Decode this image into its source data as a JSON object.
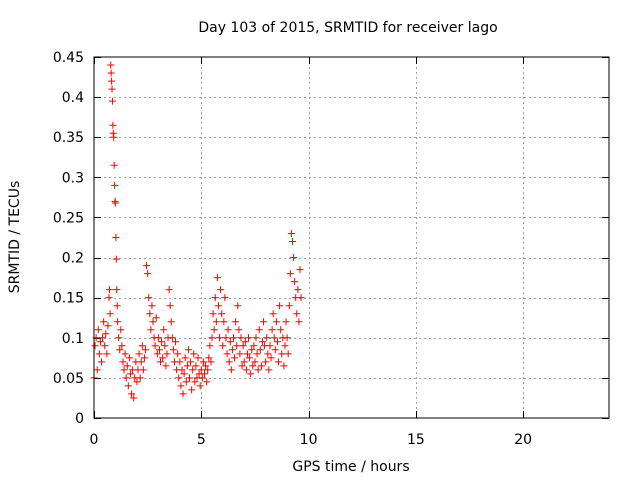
{
  "chart_data": {
    "type": "scatter",
    "title": "Day 103 of 2015, SRMTID for receiver lago",
    "xlabel": "GPS time / hours",
    "ylabel": "SRMTID / TECUs",
    "xlim": [
      0,
      24
    ],
    "ylim": [
      0,
      0.45
    ],
    "x_ticks": [
      0,
      5,
      10,
      15,
      20
    ],
    "x_tick_labels": [
      "0",
      "5",
      "10",
      "15",
      "20"
    ],
    "y_ticks": [
      0,
      0.05,
      0.1,
      0.15,
      0.2,
      0.25,
      0.3,
      0.35,
      0.4,
      0.45
    ],
    "y_tick_labels": [
      "0",
      "0.05",
      "0.1",
      "0.15",
      "0.2",
      "0.25",
      "0.3",
      "0.35",
      "0.4",
      "0.45"
    ],
    "grid": true,
    "marker": "+",
    "color": "#ff0000",
    "series": [
      {
        "name": "SRMTID",
        "points": [
          [
            0.0,
            0.05
          ],
          [
            0.05,
            0.09
          ],
          [
            0.1,
            0.1
          ],
          [
            0.15,
            0.06
          ],
          [
            0.2,
            0.11
          ],
          [
            0.25,
            0.08
          ],
          [
            0.3,
            0.095
          ],
          [
            0.35,
            0.07
          ],
          [
            0.4,
            0.1
          ],
          [
            0.45,
            0.12
          ],
          [
            0.5,
            0.09
          ],
          [
            0.55,
            0.105
          ],
          [
            0.6,
            0.08
          ],
          [
            0.65,
            0.115
          ],
          [
            0.7,
            0.15
          ],
          [
            0.72,
            0.16
          ],
          [
            0.75,
            0.13
          ],
          [
            0.78,
            0.44
          ],
          [
            0.8,
            0.43
          ],
          [
            0.82,
            0.42
          ],
          [
            0.84,
            0.41
          ],
          [
            0.86,
            0.395
          ],
          [
            0.88,
            0.365
          ],
          [
            0.9,
            0.355
          ],
          [
            0.92,
            0.35
          ],
          [
            0.94,
            0.315
          ],
          [
            0.96,
            0.29
          ],
          [
            0.98,
            0.27
          ],
          [
            1.0,
            0.268
          ],
          [
            1.02,
            0.225
          ],
          [
            1.04,
            0.198
          ],
          [
            1.06,
            0.16
          ],
          [
            1.08,
            0.14
          ],
          [
            1.1,
            0.12
          ],
          [
            1.15,
            0.1
          ],
          [
            1.2,
            0.085
          ],
          [
            1.25,
            0.11
          ],
          [
            1.3,
            0.09
          ],
          [
            1.35,
            0.07
          ],
          [
            1.4,
            0.06
          ],
          [
            1.45,
            0.08
          ],
          [
            1.5,
            0.05
          ],
          [
            1.55,
            0.065
          ],
          [
            1.6,
            0.04
          ],
          [
            1.65,
            0.075
          ],
          [
            1.7,
            0.055
          ],
          [
            1.75,
            0.03
          ],
          [
            1.8,
            0.06
          ],
          [
            1.85,
            0.025
          ],
          [
            1.9,
            0.05
          ],
          [
            1.95,
            0.07
          ],
          [
            2.0,
            0.045
          ],
          [
            2.05,
            0.06
          ],
          [
            2.1,
            0.08
          ],
          [
            2.15,
            0.05
          ],
          [
            2.2,
            0.07
          ],
          [
            2.25,
            0.09
          ],
          [
            2.3,
            0.06
          ],
          [
            2.35,
            0.075
          ],
          [
            2.4,
            0.085
          ],
          [
            2.45,
            0.19
          ],
          [
            2.5,
            0.18
          ],
          [
            2.55,
            0.15
          ],
          [
            2.6,
            0.13
          ],
          [
            2.65,
            0.11
          ],
          [
            2.7,
            0.14
          ],
          [
            2.75,
            0.12
          ],
          [
            2.8,
            0.1
          ],
          [
            2.85,
            0.09
          ],
          [
            2.9,
            0.125
          ],
          [
            2.95,
            0.08
          ],
          [
            3.0,
            0.1
          ],
          [
            3.05,
            0.085
          ],
          [
            3.1,
            0.07
          ],
          [
            3.15,
            0.095
          ],
          [
            3.2,
            0.075
          ],
          [
            3.25,
            0.11
          ],
          [
            3.3,
            0.09
          ],
          [
            3.35,
            0.065
          ],
          [
            3.4,
            0.08
          ],
          [
            3.45,
            0.1
          ],
          [
            3.5,
            0.16
          ],
          [
            3.55,
            0.14
          ],
          [
            3.6,
            0.12
          ],
          [
            3.65,
            0.1
          ],
          [
            3.7,
            0.085
          ],
          [
            3.75,
            0.07
          ],
          [
            3.8,
            0.095
          ],
          [
            3.85,
            0.06
          ],
          [
            3.9,
            0.08
          ],
          [
            3.95,
            0.05
          ],
          [
            4.0,
            0.07
          ],
          [
            4.05,
            0.04
          ],
          [
            4.1,
            0.06
          ],
          [
            4.15,
            0.03
          ],
          [
            4.2,
            0.055
          ],
          [
            4.25,
            0.075
          ],
          [
            4.3,
            0.045
          ],
          [
            4.35,
            0.065
          ],
          [
            4.4,
            0.085
          ],
          [
            4.45,
            0.05
          ],
          [
            4.5,
            0.07
          ],
          [
            4.55,
            0.035
          ],
          [
            4.6,
            0.06
          ],
          [
            4.65,
            0.08
          ],
          [
            4.7,
            0.045
          ],
          [
            4.75,
            0.065
          ],
          [
            4.8,
            0.05
          ],
          [
            4.85,
            0.075
          ],
          [
            4.9,
            0.055
          ],
          [
            4.95,
            0.04
          ],
          [
            5.0,
            0.06
          ],
          [
            5.05,
            0.05
          ],
          [
            5.1,
            0.07
          ],
          [
            5.15,
            0.055
          ],
          [
            5.2,
            0.065
          ],
          [
            5.25,
            0.045
          ],
          [
            5.3,
            0.06
          ],
          [
            5.35,
            0.075
          ],
          [
            5.4,
            0.09
          ],
          [
            5.45,
            0.07
          ],
          [
            5.5,
            0.1
          ],
          [
            5.55,
            0.13
          ],
          [
            5.6,
            0.11
          ],
          [
            5.65,
            0.15
          ],
          [
            5.7,
            0.12
          ],
          [
            5.75,
            0.175
          ],
          [
            5.8,
            0.14
          ],
          [
            5.85,
            0.1
          ],
          [
            5.9,
            0.16
          ],
          [
            5.95,
            0.13
          ],
          [
            6.0,
            0.09
          ],
          [
            6.05,
            0.12
          ],
          [
            6.1,
            0.15
          ],
          [
            6.15,
            0.1
          ],
          [
            6.2,
            0.08
          ],
          [
            6.25,
            0.11
          ],
          [
            6.3,
            0.07
          ],
          [
            6.35,
            0.095
          ],
          [
            6.4,
            0.06
          ],
          [
            6.45,
            0.085
          ],
          [
            6.5,
            0.1
          ],
          [
            6.55,
            0.075
          ],
          [
            6.6,
            0.12
          ],
          [
            6.65,
            0.09
          ],
          [
            6.7,
            0.14
          ],
          [
            6.75,
            0.11
          ],
          [
            6.8,
            0.08
          ],
          [
            6.85,
            0.1
          ],
          [
            6.9,
            0.065
          ],
          [
            6.95,
            0.09
          ],
          [
            7.0,
            0.07
          ],
          [
            7.05,
            0.095
          ],
          [
            7.1,
            0.06
          ],
          [
            7.15,
            0.08
          ],
          [
            7.2,
            0.1
          ],
          [
            7.25,
            0.075
          ],
          [
            7.3,
            0.055
          ],
          [
            7.35,
            0.085
          ],
          [
            7.4,
            0.065
          ],
          [
            7.45,
            0.09
          ],
          [
            7.5,
            0.07
          ],
          [
            7.55,
            0.1
          ],
          [
            7.6,
            0.08
          ],
          [
            7.65,
            0.06
          ],
          [
            7.7,
            0.11
          ],
          [
            7.75,
            0.085
          ],
          [
            7.8,
            0.065
          ],
          [
            7.85,
            0.095
          ],
          [
            7.9,
            0.12
          ],
          [
            7.95,
            0.09
          ],
          [
            8.0,
            0.07
          ],
          [
            8.05,
            0.1
          ],
          [
            8.1,
            0.08
          ],
          [
            8.15,
            0.06
          ],
          [
            8.2,
            0.09
          ],
          [
            8.25,
            0.075
          ],
          [
            8.3,
            0.11
          ],
          [
            8.35,
            0.13
          ],
          [
            8.4,
            0.1
          ],
          [
            8.45,
            0.085
          ],
          [
            8.5,
            0.12
          ],
          [
            8.55,
            0.095
          ],
          [
            8.6,
            0.07
          ],
          [
            8.65,
            0.14
          ],
          [
            8.7,
            0.11
          ],
          [
            8.75,
            0.08
          ],
          [
            8.8,
            0.1
          ],
          [
            8.85,
            0.065
          ],
          [
            8.9,
            0.09
          ],
          [
            8.95,
            0.12
          ],
          [
            9.0,
            0.1
          ],
          [
            9.05,
            0.08
          ],
          [
            9.1,
            0.14
          ],
          [
            9.15,
            0.18
          ],
          [
            9.2,
            0.23
          ],
          [
            9.25,
            0.22
          ],
          [
            9.3,
            0.2
          ],
          [
            9.35,
            0.17
          ],
          [
            9.4,
            0.15
          ],
          [
            9.45,
            0.13
          ],
          [
            9.5,
            0.16
          ],
          [
            9.55,
            0.12
          ],
          [
            9.6,
            0.185
          ],
          [
            9.65,
            0.15
          ]
        ]
      }
    ]
  }
}
